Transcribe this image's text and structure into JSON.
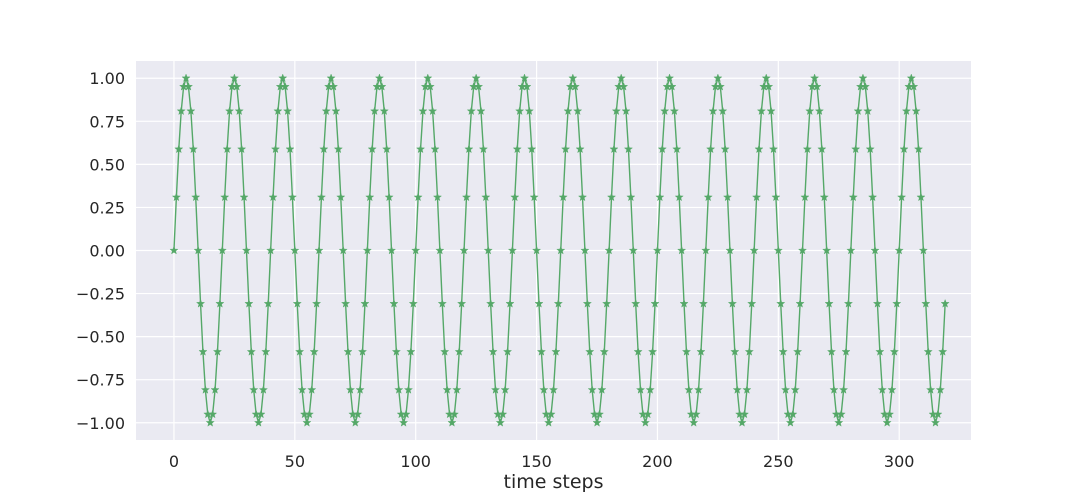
{
  "chart_data": {
    "type": "line",
    "title": "",
    "xlabel": "time steps",
    "ylabel": "",
    "xlim": [
      -15.7,
      329.7
    ],
    "ylim": [
      -1.1,
      1.1
    ],
    "xticks": [
      0,
      50,
      100,
      150,
      200,
      250,
      300
    ],
    "yticks": [
      -1.0,
      -0.75,
      -0.5,
      -0.25,
      0.0,
      0.25,
      0.5,
      0.75,
      1.0
    ],
    "xtick_labels": [
      "0",
      "50",
      "100",
      "150",
      "200",
      "250",
      "300"
    ],
    "ytick_labels": [
      "−1.00",
      "−0.75",
      "−0.50",
      "−0.25",
      "0.00",
      "0.25",
      "0.50",
      "0.75",
      "1.00"
    ],
    "grid": true,
    "legend": "none",
    "series": [
      {
        "marker": "star",
        "color": "#55a868",
        "values": [
          0.0,
          0.309,
          0.588,
          0.809,
          0.951,
          1.0,
          0.951,
          0.809,
          0.588,
          0.309,
          0.0,
          -0.309,
          -0.588,
          -0.809,
          -0.951,
          -1.0,
          -0.951,
          -0.809,
          -0.588,
          -0.309,
          0.0,
          0.309,
          0.588,
          0.809,
          0.951,
          1.0,
          0.951,
          0.809,
          0.588,
          0.309,
          0.0,
          -0.309,
          -0.588,
          -0.809,
          -0.951,
          -1.0,
          -0.951,
          -0.809,
          -0.588,
          -0.309,
          0.0,
          0.309,
          0.588,
          0.809,
          0.951,
          1.0,
          0.951,
          0.809,
          0.588,
          0.309,
          0.0,
          -0.309,
          -0.588,
          -0.809,
          -0.951,
          -1.0,
          -0.951,
          -0.809,
          -0.588,
          -0.309,
          0.0,
          0.309,
          0.588,
          0.809,
          0.951,
          1.0,
          0.951,
          0.809,
          0.588,
          0.309,
          0.0,
          -0.309,
          -0.588,
          -0.809,
          -0.951,
          -1.0,
          -0.951,
          -0.809,
          -0.588,
          -0.309,
          0.0,
          0.309,
          0.588,
          0.809,
          0.951,
          1.0,
          0.951,
          0.809,
          0.588,
          0.309,
          0.0,
          -0.309,
          -0.588,
          -0.809,
          -0.951,
          -1.0,
          -0.951,
          -0.809,
          -0.588,
          -0.309,
          0.0,
          0.309,
          0.588,
          0.809,
          0.951,
          1.0,
          0.951,
          0.809,
          0.588,
          0.309,
          0.0,
          -0.309,
          -0.588,
          -0.809,
          -0.951,
          -1.0,
          -0.951,
          -0.809,
          -0.588,
          -0.309,
          0.0,
          0.309,
          0.588,
          0.809,
          0.951,
          1.0,
          0.951,
          0.809,
          0.588,
          0.309,
          0.0,
          -0.309,
          -0.588,
          -0.809,
          -0.951,
          -1.0,
          -0.951,
          -0.809,
          -0.588,
          -0.309,
          0.0,
          0.309,
          0.588,
          0.809,
          0.951,
          1.0,
          0.951,
          0.809,
          0.588,
          0.309,
          0.0,
          -0.309,
          -0.588,
          -0.809,
          -0.951,
          -1.0,
          -0.951,
          -0.809,
          -0.588,
          -0.309,
          0.0,
          0.309,
          0.588,
          0.809,
          0.951,
          1.0,
          0.951,
          0.809,
          0.588,
          0.309,
          0.0,
          -0.309,
          -0.588,
          -0.809,
          -0.951,
          -1.0,
          -0.951,
          -0.809,
          -0.588,
          -0.309,
          0.0,
          0.309,
          0.588,
          0.809,
          0.951,
          1.0,
          0.951,
          0.809,
          0.588,
          0.309,
          0.0,
          -0.309,
          -0.588,
          -0.809,
          -0.951,
          -1.0,
          -0.951,
          -0.809,
          -0.588,
          -0.309,
          0.0,
          0.309,
          0.588,
          0.809,
          0.951,
          1.0,
          0.951,
          0.809,
          0.588,
          0.309,
          0.0,
          -0.309,
          -0.588,
          -0.809,
          -0.951,
          -1.0,
          -0.951,
          -0.809,
          -0.588,
          -0.309,
          0.0,
          0.309,
          0.588,
          0.809,
          0.951,
          1.0,
          0.951,
          0.809,
          0.588,
          0.309,
          0.0,
          -0.309,
          -0.588,
          -0.809,
          -0.951,
          -1.0,
          -0.951,
          -0.809,
          -0.588,
          -0.309,
          0.0,
          0.309,
          0.588,
          0.809,
          0.951,
          1.0,
          0.951,
          0.809,
          0.588,
          0.309,
          0.0,
          -0.309,
          -0.588,
          -0.809,
          -0.951,
          -1.0,
          -0.951,
          -0.809,
          -0.588,
          -0.309,
          0.0,
          0.309,
          0.588,
          0.809,
          0.951,
          1.0,
          0.951,
          0.809,
          0.588,
          0.309,
          0.0,
          -0.309,
          -0.588,
          -0.809,
          -0.951,
          -1.0,
          -0.951,
          -0.809,
          -0.588,
          -0.309,
          0.0,
          0.309,
          0.588,
          0.809,
          0.951,
          1.0,
          0.951,
          0.809,
          0.588,
          0.309,
          0.0,
          -0.309,
          -0.588,
          -0.809,
          -0.951,
          -1.0,
          -0.951,
          -0.809,
          -0.588,
          -0.309,
          0.0,
          0.309,
          0.588,
          0.809,
          0.951,
          1.0,
          0.951,
          0.809,
          0.588,
          0.309,
          0.0,
          -0.309,
          -0.588,
          -0.809,
          -0.951,
          -1.0,
          -0.951,
          -0.809,
          -0.588,
          -0.309
        ]
      }
    ]
  }
}
